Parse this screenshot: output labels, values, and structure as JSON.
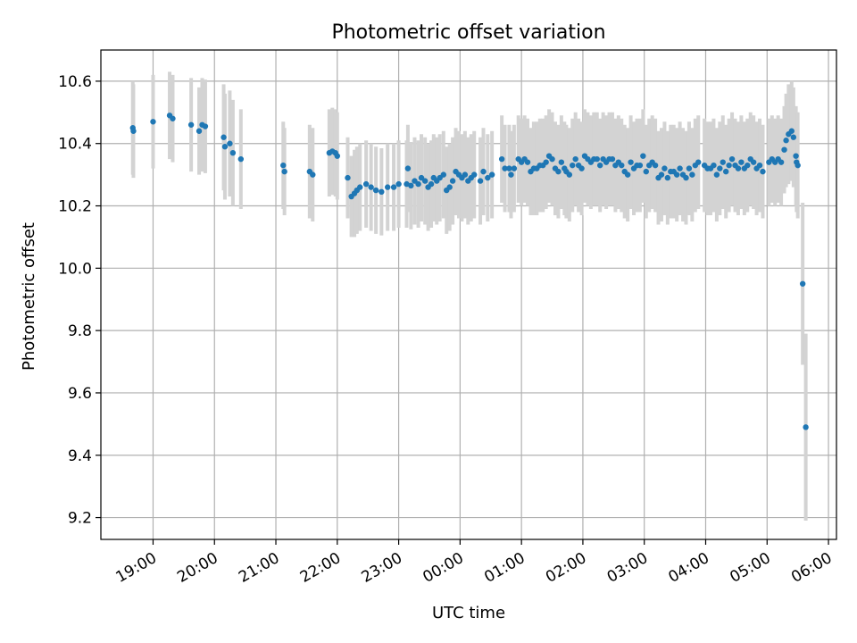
{
  "chart_data": {
    "type": "scatter",
    "title": "Photometric offset variation",
    "xlabel": "UTC time",
    "ylabel": "Photometric offset",
    "grid": true,
    "x_unit": "hours since 00:00 UTC",
    "xlim": [
      -5.85,
      6.13
    ],
    "ylim": [
      9.13,
      10.7
    ],
    "xticks": [
      {
        "pos": -5,
        "label": "19:00"
      },
      {
        "pos": -4,
        "label": "20:00"
      },
      {
        "pos": -3,
        "label": "21:00"
      },
      {
        "pos": -2,
        "label": "22:00"
      },
      {
        "pos": -1,
        "label": "23:00"
      },
      {
        "pos": 0,
        "label": "00:00"
      },
      {
        "pos": 1,
        "label": "01:00"
      },
      {
        "pos": 2,
        "label": "02:00"
      },
      {
        "pos": 3,
        "label": "03:00"
      },
      {
        "pos": 4,
        "label": "04:00"
      },
      {
        "pos": 5,
        "label": "05:00"
      },
      {
        "pos": 6,
        "label": "06:00"
      }
    ],
    "yticks": [
      {
        "pos": 9.2,
        "label": "9.2"
      },
      {
        "pos": 9.4,
        "label": "9.4"
      },
      {
        "pos": 9.6,
        "label": "9.6"
      },
      {
        "pos": 9.8,
        "label": "9.8"
      },
      {
        "pos": 10.0,
        "label": "10.0"
      },
      {
        "pos": 10.2,
        "label": "10.2"
      },
      {
        "pos": 10.4,
        "label": "10.4"
      },
      {
        "pos": 10.6,
        "label": "10.6"
      }
    ],
    "marker_color": "#1f77b4",
    "errorbar_color": "#d3d3d3",
    "points": [
      [
        -5.33,
        10.45,
        0.15
      ],
      [
        -5.32,
        10.44,
        0.15
      ],
      [
        -5.0,
        10.47,
        0.15
      ],
      [
        -4.73,
        10.49,
        0.14
      ],
      [
        -4.68,
        10.48,
        0.14
      ],
      [
        -4.38,
        10.46,
        0.15
      ],
      [
        -4.25,
        10.44,
        0.14
      ],
      [
        -4.2,
        10.46,
        0.15
      ],
      [
        -4.15,
        10.455,
        0.15
      ],
      [
        -3.85,
        10.42,
        0.17
      ],
      [
        -3.83,
        10.39,
        0.17
      ],
      [
        -3.75,
        10.4,
        0.17
      ],
      [
        -3.7,
        10.37,
        0.17
      ],
      [
        -3.57,
        10.35,
        0.16
      ],
      [
        -2.88,
        10.33,
        0.14
      ],
      [
        -2.86,
        10.31,
        0.14
      ],
      [
        -2.45,
        10.31,
        0.15
      ],
      [
        -2.4,
        10.3,
        0.15
      ],
      [
        -2.13,
        10.37,
        0.14
      ],
      [
        -2.08,
        10.375,
        0.14
      ],
      [
        -2.03,
        10.37,
        0.14
      ],
      [
        -2.0,
        10.36,
        0.14
      ],
      [
        -1.83,
        10.29,
        0.13
      ],
      [
        -1.77,
        10.23,
        0.13
      ],
      [
        -1.72,
        10.24,
        0.14
      ],
      [
        -1.68,
        10.25,
        0.14
      ],
      [
        -1.63,
        10.26,
        0.14
      ],
      [
        -1.53,
        10.27,
        0.14
      ],
      [
        -1.45,
        10.26,
        0.14
      ],
      [
        -1.37,
        10.25,
        0.14
      ],
      [
        -1.28,
        10.245,
        0.14
      ],
      [
        -1.18,
        10.26,
        0.14
      ],
      [
        -1.08,
        10.26,
        0.14
      ],
      [
        -1.0,
        10.27,
        0.14
      ],
      [
        -0.87,
        10.27,
        0.14
      ],
      [
        -0.85,
        10.32,
        0.14
      ],
      [
        -0.8,
        10.265,
        0.14
      ],
      [
        -0.74,
        10.28,
        0.14
      ],
      [
        -0.68,
        10.27,
        0.14
      ],
      [
        -0.63,
        10.29,
        0.14
      ],
      [
        -0.57,
        10.28,
        0.14
      ],
      [
        -0.52,
        10.26,
        0.14
      ],
      [
        -0.47,
        10.27,
        0.14
      ],
      [
        -0.43,
        10.29,
        0.14
      ],
      [
        -0.38,
        10.28,
        0.14
      ],
      [
        -0.33,
        10.29,
        0.14
      ],
      [
        -0.27,
        10.3,
        0.14
      ],
      [
        -0.22,
        10.25,
        0.14
      ],
      [
        -0.17,
        10.26,
        0.14
      ],
      [
        -0.12,
        10.28,
        0.14
      ],
      [
        -0.07,
        10.31,
        0.14
      ],
      [
        -0.02,
        10.3,
        0.14
      ],
      [
        0.03,
        10.29,
        0.14
      ],
      [
        0.08,
        10.3,
        0.14
      ],
      [
        0.13,
        10.28,
        0.14
      ],
      [
        0.18,
        10.29,
        0.14
      ],
      [
        0.23,
        10.3,
        0.14
      ],
      [
        0.33,
        10.28,
        0.14
      ],
      [
        0.38,
        10.31,
        0.14
      ],
      [
        0.45,
        10.29,
        0.14
      ],
      [
        0.52,
        10.3,
        0.14
      ],
      [
        0.68,
        10.35,
        0.14
      ],
      [
        0.73,
        10.32,
        0.14
      ],
      [
        0.8,
        10.32,
        0.14
      ],
      [
        0.83,
        10.3,
        0.14
      ],
      [
        0.88,
        10.32,
        0.14
      ],
      [
        0.95,
        10.35,
        0.14
      ],
      [
        1.0,
        10.34,
        0.14
      ],
      [
        1.05,
        10.35,
        0.14
      ],
      [
        1.1,
        10.34,
        0.14
      ],
      [
        1.15,
        10.31,
        0.14
      ],
      [
        1.2,
        10.32,
        0.15
      ],
      [
        1.25,
        10.32,
        0.15
      ],
      [
        1.3,
        10.33,
        0.15
      ],
      [
        1.35,
        10.33,
        0.15
      ],
      [
        1.4,
        10.34,
        0.15
      ],
      [
        1.45,
        10.36,
        0.15
      ],
      [
        1.5,
        10.35,
        0.15
      ],
      [
        1.55,
        10.32,
        0.15
      ],
      [
        1.6,
        10.31,
        0.15
      ],
      [
        1.65,
        10.34,
        0.15
      ],
      [
        1.7,
        10.32,
        0.15
      ],
      [
        1.73,
        10.31,
        0.15
      ],
      [
        1.78,
        10.3,
        0.15
      ],
      [
        1.83,
        10.33,
        0.15
      ],
      [
        1.88,
        10.35,
        0.15
      ],
      [
        1.93,
        10.33,
        0.15
      ],
      [
        1.98,
        10.32,
        0.15
      ],
      [
        2.03,
        10.36,
        0.15
      ],
      [
        2.08,
        10.35,
        0.15
      ],
      [
        2.13,
        10.34,
        0.15
      ],
      [
        2.18,
        10.35,
        0.15
      ],
      [
        2.23,
        10.35,
        0.15
      ],
      [
        2.28,
        10.33,
        0.15
      ],
      [
        2.33,
        10.35,
        0.15
      ],
      [
        2.38,
        10.34,
        0.15
      ],
      [
        2.43,
        10.35,
        0.15
      ],
      [
        2.48,
        10.35,
        0.15
      ],
      [
        2.53,
        10.33,
        0.15
      ],
      [
        2.58,
        10.34,
        0.15
      ],
      [
        2.63,
        10.33,
        0.15
      ],
      [
        2.68,
        10.31,
        0.15
      ],
      [
        2.73,
        10.3,
        0.15
      ],
      [
        2.78,
        10.34,
        0.15
      ],
      [
        2.83,
        10.32,
        0.15
      ],
      [
        2.88,
        10.33,
        0.15
      ],
      [
        2.93,
        10.33,
        0.15
      ],
      [
        2.98,
        10.36,
        0.15
      ],
      [
        3.03,
        10.31,
        0.15
      ],
      [
        3.08,
        10.33,
        0.15
      ],
      [
        3.13,
        10.34,
        0.15
      ],
      [
        3.18,
        10.33,
        0.15
      ],
      [
        3.23,
        10.29,
        0.15
      ],
      [
        3.28,
        10.3,
        0.15
      ],
      [
        3.33,
        10.32,
        0.15
      ],
      [
        3.38,
        10.29,
        0.15
      ],
      [
        3.43,
        10.31,
        0.15
      ],
      [
        3.48,
        10.31,
        0.15
      ],
      [
        3.53,
        10.3,
        0.15
      ],
      [
        3.58,
        10.32,
        0.15
      ],
      [
        3.63,
        10.3,
        0.15
      ],
      [
        3.68,
        10.29,
        0.15
      ],
      [
        3.73,
        10.32,
        0.15
      ],
      [
        3.78,
        10.3,
        0.15
      ],
      [
        3.83,
        10.33,
        0.15
      ],
      [
        3.88,
        10.34,
        0.15
      ],
      [
        3.98,
        10.33,
        0.15
      ],
      [
        4.03,
        10.32,
        0.15
      ],
      [
        4.08,
        10.32,
        0.15
      ],
      [
        4.13,
        10.33,
        0.15
      ],
      [
        4.18,
        10.3,
        0.15
      ],
      [
        4.23,
        10.32,
        0.15
      ],
      [
        4.28,
        10.34,
        0.15
      ],
      [
        4.33,
        10.31,
        0.15
      ],
      [
        4.38,
        10.33,
        0.15
      ],
      [
        4.43,
        10.35,
        0.15
      ],
      [
        4.48,
        10.33,
        0.15
      ],
      [
        4.53,
        10.32,
        0.15
      ],
      [
        4.58,
        10.34,
        0.15
      ],
      [
        4.63,
        10.32,
        0.15
      ],
      [
        4.68,
        10.33,
        0.15
      ],
      [
        4.73,
        10.35,
        0.15
      ],
      [
        4.78,
        10.34,
        0.15
      ],
      [
        4.83,
        10.32,
        0.15
      ],
      [
        4.88,
        10.33,
        0.15
      ],
      [
        4.93,
        10.31,
        0.15
      ],
      [
        5.03,
        10.34,
        0.14
      ],
      [
        5.08,
        10.35,
        0.14
      ],
      [
        5.13,
        10.34,
        0.14
      ],
      [
        5.18,
        10.35,
        0.14
      ],
      [
        5.23,
        10.34,
        0.14
      ],
      [
        5.28,
        10.38,
        0.14
      ],
      [
        5.31,
        10.41,
        0.15
      ],
      [
        5.35,
        10.43,
        0.16
      ],
      [
        5.4,
        10.44,
        0.16
      ],
      [
        5.43,
        10.42,
        0.16
      ],
      [
        5.47,
        10.36,
        0.16
      ],
      [
        5.48,
        10.34,
        0.16
      ],
      [
        5.5,
        10.33,
        0.17
      ],
      [
        5.58,
        9.95,
        0.26
      ],
      [
        5.63,
        9.49,
        0.3
      ]
    ]
  }
}
